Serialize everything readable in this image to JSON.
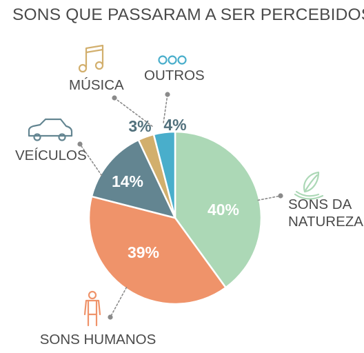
{
  "chart_data": {
    "type": "pie",
    "title": "SONS QUE PASSARAM A SER PERCEBIDOS",
    "slices": [
      {
        "label": "SONS DA NATUREZA",
        "label_lines": [
          "SONS DA",
          "NATUREZA"
        ],
        "value": 40,
        "value_label": "40%",
        "color": "#acd8b6",
        "icon": "leaf-icon"
      },
      {
        "label": "SONS HUMANOS",
        "label_lines": [
          "SONS HUMANOS"
        ],
        "value": 39,
        "value_label": "39%",
        "color": "#ef936a",
        "icon": "person-icon"
      },
      {
        "label": "VEÍCULOS",
        "label_lines": [
          "VEÍCULOS"
        ],
        "value": 14,
        "value_label": "14%",
        "color": "#638591",
        "icon": "car-icon"
      },
      {
        "label": "MÚSICA",
        "label_lines": [
          "MÚSICA"
        ],
        "value": 3,
        "value_label": "3%",
        "color": "#d2af6d",
        "icon": "music-note-icon"
      },
      {
        "label": "OUTROS",
        "label_lines": [
          "OUTROS"
        ],
        "value": 4,
        "value_label": "4%",
        "color": "#49aecb",
        "icon": "three-circles-icon"
      }
    ],
    "legend_placement": "around-pie"
  },
  "colors": {
    "label_text": "#4a4a4a",
    "value_text_light": "#ffffff",
    "value_text_dark": "#51707c",
    "leader_line": "#8a8a8a"
  }
}
